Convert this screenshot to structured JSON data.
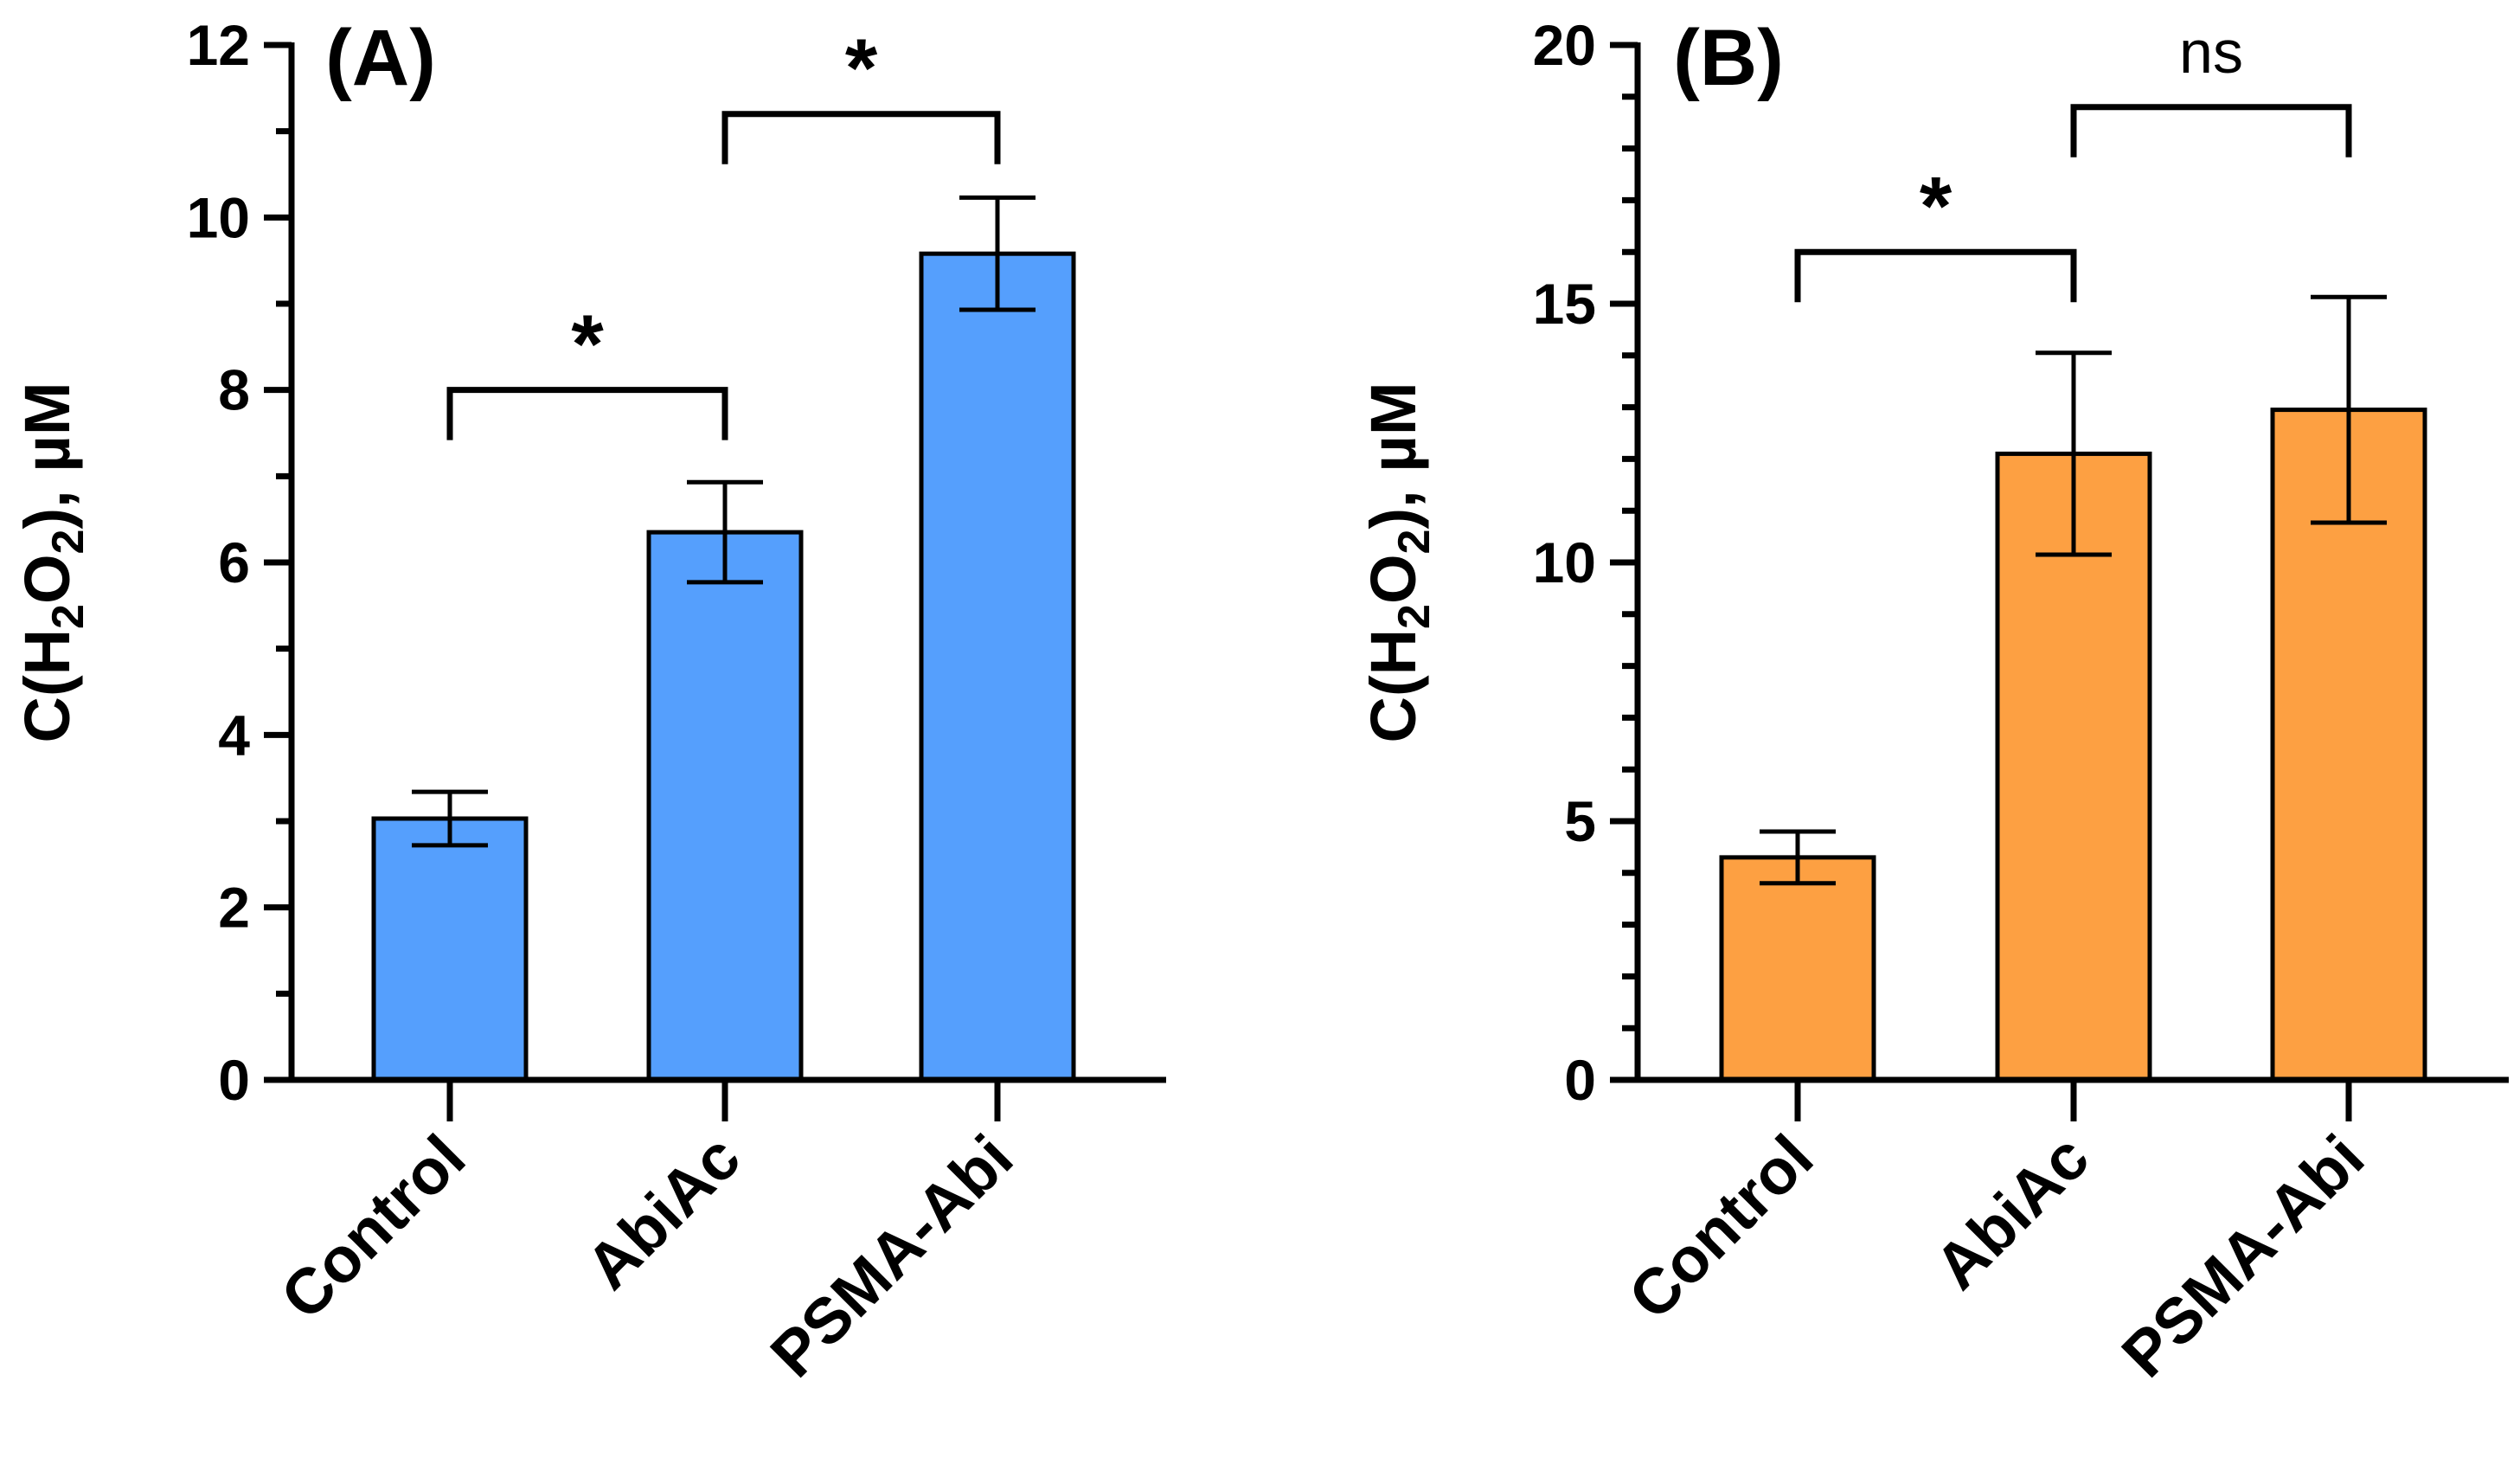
{
  "chart_data": [
    {
      "type": "bar",
      "panel_label": "(A)",
      "ylabel": "C(H2O2), µM",
      "ylabel_parts": {
        "pre": "C(H",
        "sub1": "2",
        "mid": "O",
        "sub2": "2",
        "post": "), µM"
      },
      "ylim": [
        0,
        12
      ],
      "yticks": [
        0,
        2,
        4,
        6,
        8,
        10,
        12
      ],
      "categories": [
        "Control",
        "AbiAc",
        "PSMA-Abi"
      ],
      "values": [
        3.03,
        6.35,
        9.58
      ],
      "errors": [
        0.31,
        0.58,
        0.65
      ],
      "color": "#559ffd",
      "grid": false,
      "significance": [
        {
          "from": 0,
          "to": 1,
          "label": "*",
          "y": 8.0
        },
        {
          "from": 1,
          "to": 2,
          "label": "*",
          "y": 11.2
        }
      ]
    },
    {
      "type": "bar",
      "panel_label": "(B)",
      "ylabel": "C(H2O2), µM",
      "ylabel_parts": {
        "pre": "C(H",
        "sub1": "2",
        "mid": "O",
        "sub2": "2",
        "post": "), µM"
      },
      "ylim": [
        0,
        20
      ],
      "yticks": [
        0,
        5,
        10,
        15,
        20
      ],
      "categories": [
        "Control",
        "AbiAc",
        "PSMA-Abi"
      ],
      "values": [
        4.3,
        12.1,
        12.95
      ],
      "errors": [
        0.5,
        1.95,
        2.18
      ],
      "color": "#fda042",
      "grid": false,
      "significance": [
        {
          "from": 0,
          "to": 1,
          "label": "*",
          "y": 16.0
        },
        {
          "from": 1,
          "to": 2,
          "label": "ns",
          "y": 18.8
        }
      ]
    }
  ]
}
